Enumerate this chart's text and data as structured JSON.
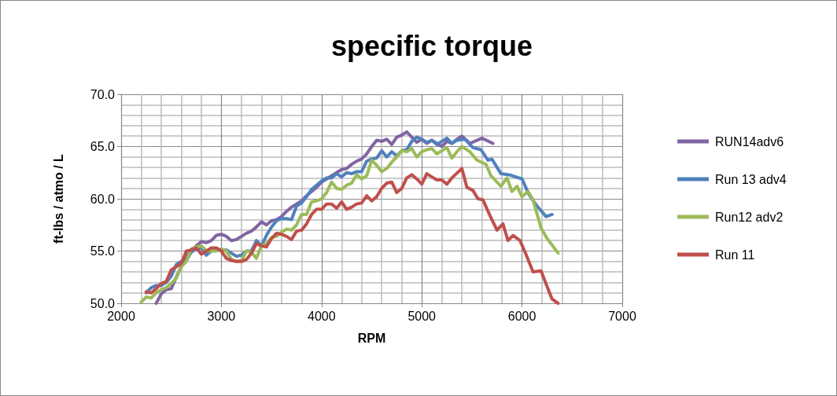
{
  "chart_data": {
    "type": "line",
    "title": "specific torque",
    "xlabel": "RPM",
    "ylabel": "ft-lbs / atmo / L",
    "xlim": [
      2000,
      7000
    ],
    "xticks": [
      2000,
      3000,
      4000,
      5000,
      6000,
      7000
    ],
    "ylim": [
      50,
      70
    ],
    "yticks": [
      {
        "value": 50,
        "label": "50.0"
      },
      {
        "value": 55,
        "label": "55.0"
      },
      {
        "value": 60,
        "label": "60.0"
      },
      {
        "value": 65,
        "label": "65.0"
      },
      {
        "value": 70,
        "label": "70.0"
      }
    ],
    "grid": true,
    "legend": "right",
    "marker": "none",
    "line_style": "solid",
    "series": [
      {
        "name": "RUN14adv6",
        "color": "#8064a2",
        "x": [
          2350,
          2400,
          2450,
          2500,
          2550,
          2600,
          2650,
          2700,
          2750,
          2800,
          2850,
          2900,
          2950,
          3000,
          3050,
          3100,
          3150,
          3200,
          3250,
          3300,
          3350,
          3400,
          3450,
          3500,
          3550,
          3600,
          3650,
          3700,
          3750,
          3800,
          3850,
          3900,
          3950,
          4000,
          4050,
          4100,
          4150,
          4200,
          4250,
          4300,
          4350,
          4400,
          4450,
          4500,
          4550,
          4600,
          4650,
          4700,
          4750,
          4800,
          4850,
          4900,
          4950,
          5000,
          5050,
          5100,
          5150,
          5200,
          5250,
          5300,
          5350,
          5400,
          5480,
          5600,
          5710
        ],
        "values": [
          50.0,
          50.9,
          51.3,
          51.4,
          52.5,
          53.5,
          54.5,
          55.0,
          55.5,
          55.9,
          55.8,
          56.0,
          56.5,
          56.6,
          56.4,
          56.0,
          56.1,
          56.4,
          56.7,
          56.9,
          57.3,
          57.8,
          57.5,
          57.9,
          58.0,
          58.3,
          58.8,
          59.2,
          59.5,
          59.8,
          60.3,
          60.7,
          61.1,
          61.6,
          61.9,
          62.2,
          62.5,
          62.8,
          62.9,
          63.3,
          63.6,
          63.8,
          64.3,
          65.0,
          65.6,
          65.5,
          65.7,
          65.2,
          65.9,
          66.1,
          66.4,
          65.9,
          65.4,
          65.7,
          65.3,
          65.6,
          65.3,
          65.0,
          65.5,
          65.3,
          65.7,
          66.0,
          65.3,
          65.8,
          65.3
        ]
      },
      {
        "name": "Run 13 adv4",
        "color": "#4f81bd",
        "x": [
          2250,
          2300,
          2350,
          2400,
          2450,
          2500,
          2550,
          2600,
          2650,
          2700,
          2750,
          2800,
          2850,
          2900,
          2950,
          3000,
          3050,
          3100,
          3150,
          3200,
          3250,
          3300,
          3350,
          3400,
          3450,
          3500,
          3550,
          3600,
          3650,
          3700,
          3750,
          3800,
          3850,
          3900,
          3950,
          4000,
          4050,
          4100,
          4150,
          4200,
          4250,
          4300,
          4350,
          4400,
          4450,
          4500,
          4550,
          4600,
          4650,
          4700,
          4750,
          4800,
          4850,
          4900,
          4950,
          5000,
          5050,
          5100,
          5150,
          5200,
          5250,
          5300,
          5350,
          5430,
          5510,
          5590,
          5660,
          5700,
          5790,
          5870,
          6000,
          6070,
          6150,
          6240,
          6300
        ],
        "values": [
          51.0,
          51.5,
          51.7,
          51.7,
          52.0,
          52.6,
          53.7,
          54.0,
          54.1,
          54.9,
          55.2,
          55.3,
          54.6,
          55.0,
          55.1,
          55.1,
          55.1,
          54.8,
          54.5,
          54.6,
          55.0,
          55.0,
          56.0,
          55.5,
          56.5,
          57.3,
          57.9,
          58.1,
          58.1,
          58.0,
          59.3,
          59.6,
          60.2,
          60.9,
          61.3,
          61.7,
          62.0,
          62.0,
          62.4,
          62.1,
          62.5,
          62.4,
          62.6,
          62.6,
          63.6,
          63.8,
          63.9,
          64.6,
          64.0,
          64.5,
          64.1,
          64.6,
          64.7,
          65.5,
          65.9,
          65.7,
          65.4,
          65.6,
          65.2,
          65.5,
          65.8,
          65.3,
          65.6,
          65.7,
          64.9,
          64.7,
          63.7,
          63.8,
          62.4,
          62.3,
          61.9,
          60.4,
          59.3,
          58.3,
          58.5
        ]
      },
      {
        "name": "Run12 adv2",
        "color": "#9bbb59",
        "x": [
          2200,
          2250,
          2300,
          2350,
          2400,
          2450,
          2500,
          2550,
          2600,
          2650,
          2700,
          2750,
          2800,
          2850,
          2900,
          2950,
          3000,
          3050,
          3100,
          3150,
          3200,
          3250,
          3300,
          3350,
          3400,
          3450,
          3500,
          3550,
          3600,
          3650,
          3700,
          3750,
          3800,
          3850,
          3900,
          3950,
          4000,
          4050,
          4100,
          4150,
          4200,
          4250,
          4300,
          4350,
          4400,
          4450,
          4500,
          4550,
          4600,
          4650,
          4700,
          4750,
          4800,
          4850,
          4900,
          4950,
          5000,
          5050,
          5100,
          5150,
          5200,
          5250,
          5300,
          5350,
          5400,
          5480,
          5550,
          5640,
          5690,
          5790,
          5850,
          5900,
          5950,
          6000,
          6060,
          6110,
          6190,
          6250,
          6360
        ],
        "values": [
          50.1,
          50.6,
          50.5,
          51.0,
          51.3,
          51.5,
          51.9,
          52.4,
          53.5,
          54.0,
          55.2,
          55.4,
          55.5,
          55.0,
          55.0,
          55.0,
          55.2,
          55.0,
          54.2,
          54.0,
          54.1,
          55.0,
          54.9,
          54.3,
          55.5,
          55.7,
          56.3,
          56.4,
          56.8,
          57.1,
          57.0,
          57.5,
          58.5,
          58.5,
          59.7,
          59.8,
          60.0,
          60.6,
          61.6,
          61.0,
          60.9,
          61.3,
          61.5,
          62.3,
          61.9,
          62.2,
          63.7,
          63.2,
          62.6,
          62.9,
          63.5,
          64.0,
          64.6,
          64.5,
          64.8,
          64.0,
          64.5,
          64.7,
          64.8,
          64.3,
          64.6,
          64.9,
          63.9,
          64.5,
          65.0,
          64.5,
          63.7,
          63.3,
          62.2,
          61.2,
          62.0,
          60.7,
          61.2,
          60.2,
          60.7,
          59.9,
          57.2,
          56.2,
          54.8
        ]
      },
      {
        "name": "Run 11",
        "color": "#c0504d",
        "x": [
          2250,
          2300,
          2350,
          2400,
          2450,
          2500,
          2550,
          2600,
          2650,
          2700,
          2750,
          2800,
          2850,
          2900,
          2950,
          3000,
          3050,
          3100,
          3150,
          3200,
          3250,
          3300,
          3350,
          3400,
          3450,
          3500,
          3550,
          3600,
          3650,
          3700,
          3750,
          3800,
          3850,
          3900,
          3950,
          4000,
          4050,
          4100,
          4150,
          4200,
          4250,
          4300,
          4350,
          4400,
          4450,
          4500,
          4550,
          4600,
          4650,
          4700,
          4750,
          4800,
          4850,
          4900,
          4950,
          5000,
          5050,
          5100,
          5150,
          5200,
          5250,
          5300,
          5400,
          5450,
          5510,
          5560,
          5610,
          5680,
          5750,
          5810,
          5860,
          5910,
          5980,
          6030,
          6110,
          6190,
          6250,
          6300,
          6360
        ],
        "values": [
          51.1,
          51.0,
          51.4,
          51.9,
          52.1,
          53.2,
          53.5,
          53.8,
          55.0,
          55.1,
          55.3,
          54.7,
          55.0,
          55.3,
          55.3,
          55.0,
          54.3,
          54.1,
          54.0,
          54.0,
          54.2,
          54.8,
          55.7,
          55.5,
          55.4,
          56.2,
          56.7,
          56.6,
          56.4,
          56.1,
          56.9,
          57.0,
          57.6,
          58.5,
          59.0,
          59.0,
          59.5,
          59.5,
          59.1,
          59.7,
          59.0,
          59.2,
          59.5,
          59.6,
          60.3,
          59.8,
          60.2,
          61.0,
          61.5,
          61.6,
          60.6,
          61.0,
          62.0,
          62.3,
          61.9,
          61.4,
          62.4,
          62.1,
          61.8,
          61.8,
          61.4,
          62.0,
          62.9,
          61.1,
          60.8,
          60.0,
          59.9,
          58.4,
          57.0,
          57.6,
          56.0,
          56.5,
          56.0,
          54.9,
          53.0,
          53.1,
          51.6,
          50.4,
          50.0
        ]
      }
    ]
  }
}
